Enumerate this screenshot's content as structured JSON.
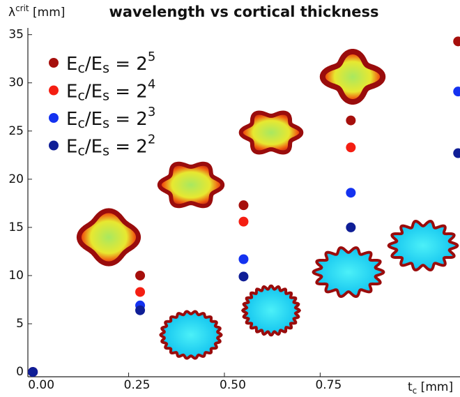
{
  "chart_data": {
    "type": "scatter",
    "title": "wavelength vs cortical thickness",
    "y_label": [
      "λ",
      "crit",
      " [mm]"
    ],
    "x_label": [
      "t",
      "c",
      " [mm]"
    ],
    "x": [
      0,
      0.28,
      0.55,
      0.83,
      1.11
    ],
    "series": [
      {
        "name": [
          "E",
          "c",
          "/E",
          "s",
          " = 2",
          "5"
        ],
        "color": "#a60f0c",
        "values": [
          0,
          10.0,
          17.3,
          26.1,
          34.3
        ]
      },
      {
        "name": [
          "E",
          "c",
          "/E",
          "s",
          " = 2",
          "4"
        ],
        "color": "#f41e12",
        "values": [
          0,
          8.3,
          15.6,
          23.3,
          null
        ]
      },
      {
        "name": [
          "E",
          "c",
          "/E",
          "s",
          " = 2",
          "3"
        ],
        "color": "#1432f0",
        "values": [
          0,
          6.9,
          11.7,
          18.6,
          29.1
        ]
      },
      {
        "name": [
          "E",
          "c",
          "/E",
          "s",
          " = 2",
          "2"
        ],
        "color": "#0f1e96",
        "values": [
          0,
          6.4,
          9.9,
          15.0,
          22.7
        ]
      }
    ],
    "xlim": [
      -0.013,
      1.115
    ],
    "ylim": [
      -0.5,
      35.7
    ],
    "xticks": [
      {
        "value": 0,
        "label": "0.00"
      },
      {
        "value": 0.25,
        "label": "0.25"
      },
      {
        "value": 0.5,
        "label": "0.50"
      },
      {
        "value": 0.75,
        "label": "0.75"
      }
    ],
    "yticks": [
      0,
      5,
      10,
      15,
      20,
      25,
      30,
      35
    ],
    "legend": "upper left"
  }
}
